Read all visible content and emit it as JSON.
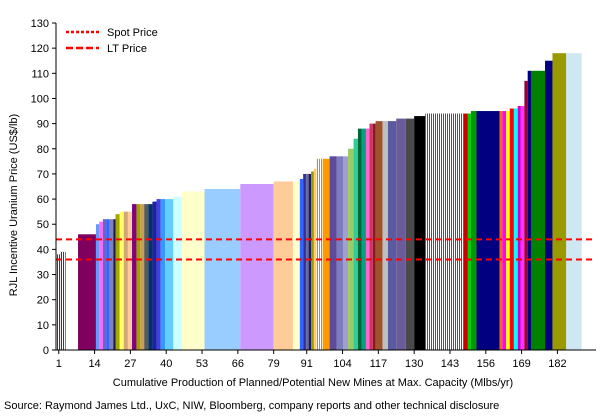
{
  "chart_data": {
    "type": "bar",
    "xlabel": "Cumulative Production of Planned/Potential New Mines at Max. Capacity (Mlbs/yr)",
    "ylabel": "RJL Incentive Uranium Price (US$/lb)",
    "ylim": [
      0,
      130
    ],
    "yticks": [
      0,
      10,
      20,
      30,
      40,
      50,
      60,
      70,
      80,
      90,
      100,
      110,
      120,
      130
    ],
    "xlim": [
      0,
      196
    ],
    "xticks": [
      1,
      14,
      27,
      40,
      53,
      66,
      79,
      91,
      104,
      117,
      130,
      143,
      156,
      169,
      182
    ],
    "grid": false,
    "legend_position": "top-left",
    "legend": [
      {
        "name": "Spot Price",
        "color": "#ff0000",
        "style": "dashed"
      },
      {
        "name": "LT Price",
        "color": "#ff0000",
        "style": "dashed"
      }
    ],
    "reference_lines": [
      {
        "name": "Spot Price",
        "value": 36
      },
      {
        "name": "LT Price",
        "value": 44
      }
    ],
    "bars": [
      {
        "x0": 0.0,
        "x1": 1.5,
        "value": 38,
        "color": "#7a1c3a",
        "hatch": true
      },
      {
        "x0": 1.5,
        "x1": 3.5,
        "value": 39,
        "color": "#7a1c3a",
        "hatch": true
      },
      {
        "x0": 8.0,
        "x1": 14.5,
        "value": 46,
        "color": "#800060"
      },
      {
        "x0": 14.5,
        "x1": 15.7,
        "value": 50,
        "color": "#6699ff"
      },
      {
        "x0": 15.7,
        "x1": 17.0,
        "value": 51,
        "color": "#ff66ff"
      },
      {
        "x0": 17.0,
        "x1": 18.3,
        "value": 52,
        "color": "#6666cc"
      },
      {
        "x0": 18.3,
        "x1": 19.5,
        "value": 52,
        "color": "#3366ff"
      },
      {
        "x0": 19.5,
        "x1": 20.8,
        "value": 52,
        "color": "#8080c0"
      },
      {
        "x0": 20.8,
        "x1": 21.6,
        "value": 52,
        "color": "#1a1a4d"
      },
      {
        "x0": 21.6,
        "x1": 23.1,
        "value": 54,
        "color": "#a6a600"
      },
      {
        "x0": 23.1,
        "x1": 24.6,
        "value": 55,
        "color": "#ffff66"
      },
      {
        "x0": 24.6,
        "x1": 26.1,
        "value": 55,
        "color": "#d2a679"
      },
      {
        "x0": 26.1,
        "x1": 27.6,
        "value": 55,
        "color": "#ffcc99"
      },
      {
        "x0": 27.6,
        "x1": 29.2,
        "value": 58,
        "color": "#800080"
      },
      {
        "x0": 29.2,
        "x1": 30.6,
        "value": 58,
        "color": "#a0a000"
      },
      {
        "x0": 30.6,
        "x1": 32.0,
        "value": 58,
        "color": "#c8a050"
      },
      {
        "x0": 32.0,
        "x1": 33.5,
        "value": 58,
        "color": "#5a5a5a"
      },
      {
        "x0": 33.5,
        "x1": 35.0,
        "value": 58,
        "color": "#003366"
      },
      {
        "x0": 35.0,
        "x1": 36.5,
        "value": 59,
        "color": "#2020a0"
      },
      {
        "x0": 36.5,
        "x1": 38.0,
        "value": 60,
        "color": "#4040e0"
      },
      {
        "x0": 38.0,
        "x1": 39.6,
        "value": 60,
        "color": "#3399ff"
      },
      {
        "x0": 39.6,
        "x1": 42.6,
        "value": 60,
        "color": "#66ccff"
      },
      {
        "x0": 42.6,
        "x1": 45.7,
        "value": 61,
        "color": "#ccffff"
      },
      {
        "x0": 45.7,
        "x1": 53.9,
        "value": 63,
        "color": "#ffffcc"
      },
      {
        "x0": 53.9,
        "x1": 66.9,
        "value": 64,
        "color": "#99ccff"
      },
      {
        "x0": 66.9,
        "x1": 79.0,
        "value": 66,
        "color": "#cc99ff"
      },
      {
        "x0": 79.0,
        "x1": 86.0,
        "value": 67,
        "color": "#ffcc99"
      },
      {
        "x0": 86.0,
        "x1": 88.5,
        "value": 67,
        "color": "#ffffcc"
      },
      {
        "x0": 88.5,
        "x1": 89.7,
        "value": 68,
        "color": "#3366ff"
      },
      {
        "x0": 89.7,
        "x1": 90.8,
        "value": 70,
        "color": "#333399"
      },
      {
        "x0": 90.8,
        "x1": 91.7,
        "value": 70,
        "color": "#666699"
      },
      {
        "x0": 91.7,
        "x1": 92.6,
        "value": 70,
        "color": "#1a1a66"
      },
      {
        "x0": 92.6,
        "x1": 93.6,
        "value": 71,
        "color": "#999900"
      },
      {
        "x0": 93.6,
        "x1": 94.5,
        "value": 72,
        "color": "#ffcc66"
      },
      {
        "x0": 94.5,
        "x1": 96.8,
        "value": 76,
        "color": "#a6a600",
        "hatch": true
      },
      {
        "x0": 96.8,
        "x1": 99.3,
        "value": 76,
        "color": "#ff9900"
      },
      {
        "x0": 99.3,
        "x1": 101.8,
        "value": 77,
        "color": "#5c4a9a"
      },
      {
        "x0": 101.8,
        "x1": 104.3,
        "value": 77,
        "color": "#7d7dbd"
      },
      {
        "x0": 104.3,
        "x1": 106.0,
        "value": 77,
        "color": "#a0a0d0"
      },
      {
        "x0": 106.0,
        "x1": 108.0,
        "value": 80,
        "color": "#99cc66"
      },
      {
        "x0": 108.0,
        "x1": 109.6,
        "value": 84,
        "color": "#33cc99"
      },
      {
        "x0": 109.6,
        "x1": 111.0,
        "value": 88,
        "color": "#006633"
      },
      {
        "x0": 111.0,
        "x1": 112.5,
        "value": 88,
        "color": "#00a080"
      },
      {
        "x0": 112.5,
        "x1": 113.8,
        "value": 88,
        "color": "#ff66cc"
      },
      {
        "x0": 113.8,
        "x1": 115.0,
        "value": 90,
        "color": "#cc3366"
      },
      {
        "x0": 115.0,
        "x1": 116.0,
        "value": 90,
        "color": "#8b1a1a"
      },
      {
        "x0": 116.0,
        "x1": 118.5,
        "value": 91,
        "color": "#a0522d"
      },
      {
        "x0": 118.5,
        "x1": 120.5,
        "value": 91,
        "color": "#bfbfbf"
      },
      {
        "x0": 120.5,
        "x1": 123.5,
        "value": 91,
        "color": "#5a5aa0"
      },
      {
        "x0": 123.5,
        "x1": 127.0,
        "value": 92,
        "color": "#6b5b9b"
      },
      {
        "x0": 127.0,
        "x1": 130.0,
        "value": 92,
        "color": "#4a4a4a"
      },
      {
        "x0": 130.0,
        "x1": 134.0,
        "value": 93,
        "color": "#000000"
      },
      {
        "x0": 134.0,
        "x1": 148.0,
        "value": 94,
        "color": "#555555",
        "hatch": true
      },
      {
        "x0": 148.0,
        "x1": 149.5,
        "value": 94,
        "color": "#cc0000"
      },
      {
        "x0": 149.5,
        "x1": 150.6,
        "value": 94,
        "color": "#00cc00"
      },
      {
        "x0": 150.6,
        "x1": 152.6,
        "value": 95,
        "color": "#009900"
      },
      {
        "x0": 152.6,
        "x1": 161.0,
        "value": 95,
        "color": "#000080"
      },
      {
        "x0": 161.0,
        "x1": 162.0,
        "value": 95,
        "color": "#ff6600"
      },
      {
        "x0": 162.0,
        "x1": 163.4,
        "value": 95,
        "color": "#ff00ff"
      },
      {
        "x0": 163.4,
        "x1": 164.7,
        "value": 95,
        "color": "#ffff00"
      },
      {
        "x0": 164.7,
        "x1": 166.2,
        "value": 96,
        "color": "#ff0000"
      },
      {
        "x0": 166.2,
        "x1": 167.6,
        "value": 96,
        "color": "#00ffff"
      },
      {
        "x0": 167.6,
        "x1": 168.6,
        "value": 97,
        "color": "#cc00cc"
      },
      {
        "x0": 168.6,
        "x1": 170.0,
        "value": 97,
        "color": "#ff33ff"
      },
      {
        "x0": 170.0,
        "x1": 171.2,
        "value": 107,
        "color": "#990033"
      },
      {
        "x0": 171.2,
        "x1": 172.4,
        "value": 111,
        "color": "#000080"
      },
      {
        "x0": 172.4,
        "x1": 177.5,
        "value": 111,
        "color": "#008000"
      },
      {
        "x0": 177.5,
        "x1": 180.2,
        "value": 115,
        "color": "#000080"
      },
      {
        "x0": 180.2,
        "x1": 185.2,
        "value": 118,
        "color": "#999900"
      },
      {
        "x0": 185.2,
        "x1": 190.8,
        "value": 118,
        "color": "#cfe7f3"
      }
    ]
  },
  "source_text": "Source: Raymond James Ltd., UxC, NIW, Bloomberg, company reports and other technical disclosure"
}
